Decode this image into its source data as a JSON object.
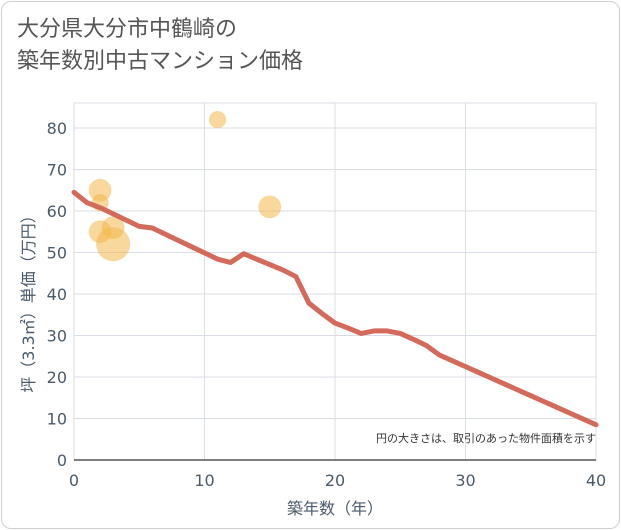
{
  "title": {
    "line1": "大分県大分市中鶴崎の",
    "line2": "築年数別中古マンション価格"
  },
  "chart_data": {
    "type": "scatter",
    "title": "大分県大分市中鶴崎の築年数別中古マンション価格",
    "xlabel": "築年数（年）",
    "ylabel": "坪（3.3㎡）単価（万円）",
    "xlim": [
      0,
      40
    ],
    "ylim": [
      0,
      85
    ],
    "x_ticks": [
      0,
      10,
      20,
      30,
      40
    ],
    "y_ticks": [
      0,
      10,
      20,
      30,
      40,
      50,
      60,
      70,
      80
    ],
    "grid": true,
    "note": "円の大きさは、取引のあった物件面積を示す",
    "colors": {
      "bubble": "#f2b84b",
      "line": "#d46a5a",
      "grid": "#d9dee6",
      "axis": "#4a5a6a"
    },
    "bubbles": [
      {
        "x": 2,
        "y": 65,
        "size": 3
      },
      {
        "x": 2,
        "y": 62,
        "size": 2
      },
      {
        "x": 2,
        "y": 55,
        "size": 3
      },
      {
        "x": 3,
        "y": 56,
        "size": 3
      },
      {
        "x": 3,
        "y": 52,
        "size": 5
      },
      {
        "x": 11,
        "y": 82,
        "size": 2
      },
      {
        "x": 15,
        "y": 61,
        "size": 3
      }
    ],
    "trend": {
      "x": [
        0,
        1,
        2,
        3,
        4,
        5,
        6,
        7,
        8,
        9,
        10,
        11,
        12,
        13,
        14,
        15,
        16,
        17,
        18,
        19,
        20,
        21,
        22,
        23,
        24,
        25,
        26,
        27,
        28,
        29,
        30,
        31,
        32,
        33,
        34,
        35,
        36,
        37,
        38,
        39,
        40
      ],
      "y": [
        64.5,
        62,
        60.8,
        59.3,
        57.8,
        56.3,
        55.9,
        54.4,
        52.9,
        51.4,
        49.9,
        48.4,
        47.6,
        49.7,
        48.4,
        47.1,
        45.8,
        44.2,
        37.8,
        35.3,
        33,
        31.8,
        30.5,
        31.1,
        31.1,
        30.5,
        29.1,
        27.6,
        25.3,
        23.9,
        22.5,
        21.1,
        19.7,
        18.3,
        16.9,
        15.5,
        14.1,
        12.7,
        11.3,
        9.9,
        8.5
      ]
    }
  }
}
